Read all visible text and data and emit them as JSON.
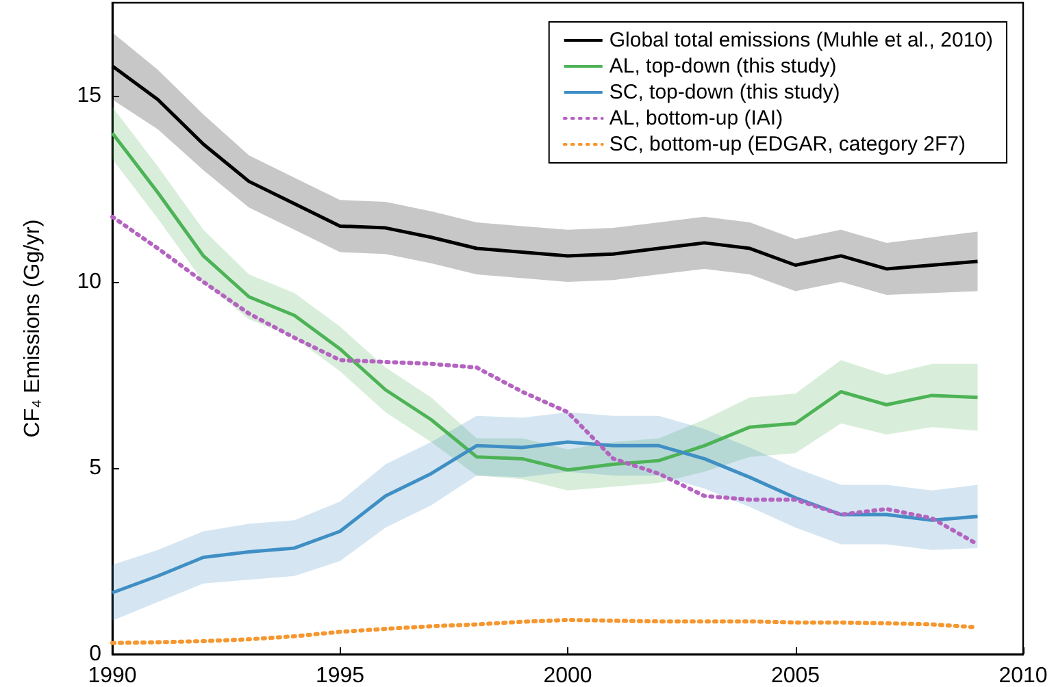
{
  "chart_data": {
    "type": "line",
    "ylabel": "CF₄ Emissions (Gg/yr)",
    "x": [
      1990,
      1991,
      1992,
      1993,
      1994,
      1995,
      1996,
      1997,
      1998,
      1999,
      2000,
      2001,
      2002,
      2003,
      2004,
      2005,
      2006,
      2007,
      2008,
      2009
    ],
    "xlim": [
      1990,
      2010
    ],
    "xticks": [
      1990,
      1995,
      2000,
      2005,
      2010
    ],
    "ylim": [
      0,
      17.5
    ],
    "yticks": [
      0,
      5,
      10,
      15
    ],
    "grid": false,
    "legend": "top right",
    "marker": "none",
    "series": [
      {
        "name": "Global total emissions (Muhle et al., 2010)",
        "color": "#000000",
        "line_style": "solid",
        "values": [
          15.8,
          14.9,
          13.7,
          12.7,
          12.1,
          11.5,
          11.45,
          11.2,
          10.9,
          10.8,
          10.7,
          10.75,
          10.9,
          11.05,
          10.9,
          10.45,
          10.7,
          10.35,
          10.45,
          10.55
        ],
        "lower": [
          14.9,
          14.1,
          13.0,
          12.0,
          11.4,
          10.8,
          10.75,
          10.5,
          10.2,
          10.1,
          10.0,
          10.05,
          10.2,
          10.35,
          10.2,
          9.75,
          10.0,
          9.65,
          9.7,
          9.75
        ],
        "upper": [
          16.7,
          15.7,
          14.5,
          13.4,
          12.8,
          12.2,
          12.15,
          11.9,
          11.6,
          11.5,
          11.4,
          11.45,
          11.6,
          11.75,
          11.6,
          11.15,
          11.4,
          11.05,
          11.2,
          11.35
        ]
      },
      {
        "name": "AL, top-down (this study)",
        "color": "#4db356",
        "line_style": "solid",
        "values": [
          14.0,
          12.4,
          10.7,
          9.6,
          9.1,
          8.2,
          7.1,
          6.3,
          5.3,
          5.25,
          4.95,
          5.1,
          5.2,
          5.6,
          6.1,
          6.2,
          7.05,
          6.7,
          6.95,
          6.9
        ],
        "lower": [
          13.3,
          11.7,
          10.0,
          9.0,
          8.5,
          7.6,
          6.5,
          5.7,
          4.8,
          4.7,
          4.4,
          4.5,
          4.6,
          4.9,
          5.3,
          5.4,
          6.2,
          5.9,
          6.1,
          6.0
        ],
        "upper": [
          14.7,
          13.1,
          11.4,
          10.2,
          9.7,
          8.8,
          7.7,
          6.9,
          5.8,
          5.8,
          5.5,
          5.7,
          5.8,
          6.3,
          6.9,
          7.0,
          7.9,
          7.5,
          7.8,
          7.8
        ]
      },
      {
        "name": "SC, top-down (this study)",
        "color": "#3f8fc4",
        "line_style": "solid",
        "values": [
          1.65,
          2.1,
          2.6,
          2.75,
          2.85,
          3.3,
          4.25,
          4.85,
          5.6,
          5.55,
          5.7,
          5.6,
          5.6,
          5.25,
          4.75,
          4.2,
          3.75,
          3.75,
          3.6,
          3.7
        ],
        "lower": [
          0.9,
          1.4,
          1.9,
          2.0,
          2.1,
          2.5,
          3.4,
          4.0,
          4.8,
          4.75,
          4.9,
          4.8,
          4.8,
          4.45,
          3.95,
          3.4,
          2.95,
          2.95,
          2.8,
          2.85
        ],
        "upper": [
          2.4,
          2.8,
          3.3,
          3.5,
          3.6,
          4.1,
          5.1,
          5.7,
          6.4,
          6.35,
          6.5,
          6.4,
          6.4,
          6.05,
          5.55,
          5.0,
          4.55,
          4.55,
          4.4,
          4.55
        ]
      },
      {
        "name": "AL, bottom-up (IAI)",
        "color": "#b464c0",
        "line_style": "dotted",
        "values": [
          11.75,
          10.9,
          10.0,
          9.15,
          8.5,
          7.9,
          7.85,
          7.8,
          7.7,
          7.05,
          6.5,
          5.25,
          4.85,
          4.25,
          4.15,
          4.15,
          3.75,
          3.9,
          3.65,
          2.95
        ]
      },
      {
        "name": "SC, bottom-up (EDGAR, category 2F7)",
        "color": "#f5962e",
        "line_style": "dotted",
        "values": [
          0.3,
          0.32,
          0.35,
          0.4,
          0.48,
          0.6,
          0.68,
          0.75,
          0.8,
          0.87,
          0.92,
          0.9,
          0.88,
          0.88,
          0.88,
          0.85,
          0.85,
          0.83,
          0.8,
          0.72
        ]
      }
    ]
  }
}
